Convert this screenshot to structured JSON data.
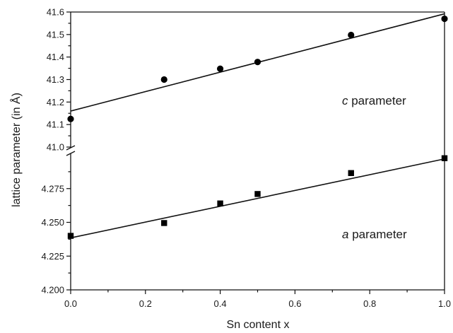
{
  "chart_data": {
    "type": "scatter",
    "xlabel": "Sn content x",
    "ylabel": "lattice parameter (in Å)",
    "xlim": [
      0.0,
      1.0
    ],
    "x_ticks": [
      "0.0",
      "0.2",
      "0.4",
      "0.6",
      "0.8",
      "1.0"
    ],
    "broken_y_axis": true,
    "panels": [
      {
        "name": "c",
        "ylim": [
          41.0,
          41.6
        ],
        "y_ticks": [
          "41.0",
          "41.1",
          "41.2",
          "41.3",
          "41.4",
          "41.5",
          "41.6"
        ],
        "marker": "circle",
        "annotation": {
          "italic": "c",
          "text": " parameter"
        },
        "x": [
          0.0,
          0.25,
          0.4,
          0.5,
          0.75,
          1.0
        ],
        "y": [
          41.125,
          41.3,
          41.348,
          41.378,
          41.498,
          41.57
        ],
        "fit": {
          "x": [
            0.0,
            1.0
          ],
          "y": [
            41.16,
            41.592
          ]
        }
      },
      {
        "name": "a",
        "ylim": [
          4.2,
          4.3
        ],
        "y_ticks": [
          "4.200",
          "4.225",
          "4.250",
          "4.275"
        ],
        "marker": "square",
        "annotation": {
          "italic": "a",
          "text": " parameter"
        },
        "x": [
          0.0,
          0.25,
          0.4,
          0.5,
          0.75,
          1.0
        ],
        "y": [
          4.24,
          4.2495,
          4.264,
          4.271,
          4.2865,
          4.2975
        ],
        "fit": {
          "x": [
            0.0,
            1.0
          ],
          "y": [
            4.2385,
            4.297
          ]
        }
      }
    ]
  }
}
